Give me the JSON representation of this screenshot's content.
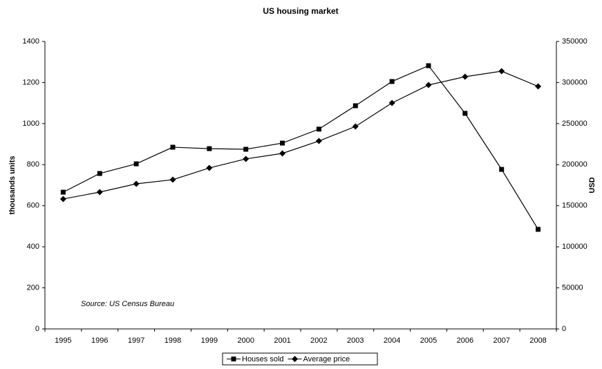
{
  "chart_data": {
    "type": "line",
    "title": "US housing market",
    "y_label": "thousands units",
    "y2_label": "USD",
    "annotation": "Source: US Census Bureau",
    "categories": [
      "1995",
      "1996",
      "1997",
      "1998",
      "1999",
      "2000",
      "2001",
      "2002",
      "2003",
      "2004",
      "2005",
      "2006",
      "2007",
      "2008"
    ],
    "series": [
      {
        "name": "Houses sold",
        "color": "#000000",
        "marker": "square",
        "axis": "y",
        "values": [
          666,
          757,
          804,
          885,
          878,
          875,
          905,
          973,
          1087,
          1205,
          1282,
          1050,
          777,
          485
        ]
      },
      {
        "name": "Average price",
        "color": "#000000",
        "marker": "diamond",
        "axis": "y2",
        "values": [
          158200,
          166600,
          176700,
          181700,
          196000,
          207000,
          213700,
          228800,
          246500,
          275100,
          297000,
          307100,
          313800,
          295300
        ]
      }
    ],
    "ylim": [
      0,
      1400
    ],
    "yticks": [
      0,
      200,
      400,
      600,
      800,
      1000,
      1200,
      1400
    ],
    "y2lim": [
      0,
      350000
    ],
    "y2ticks": [
      0,
      50000,
      100000,
      150000,
      200000,
      250000,
      300000,
      350000
    ],
    "grid": false,
    "legend": "bottom"
  }
}
